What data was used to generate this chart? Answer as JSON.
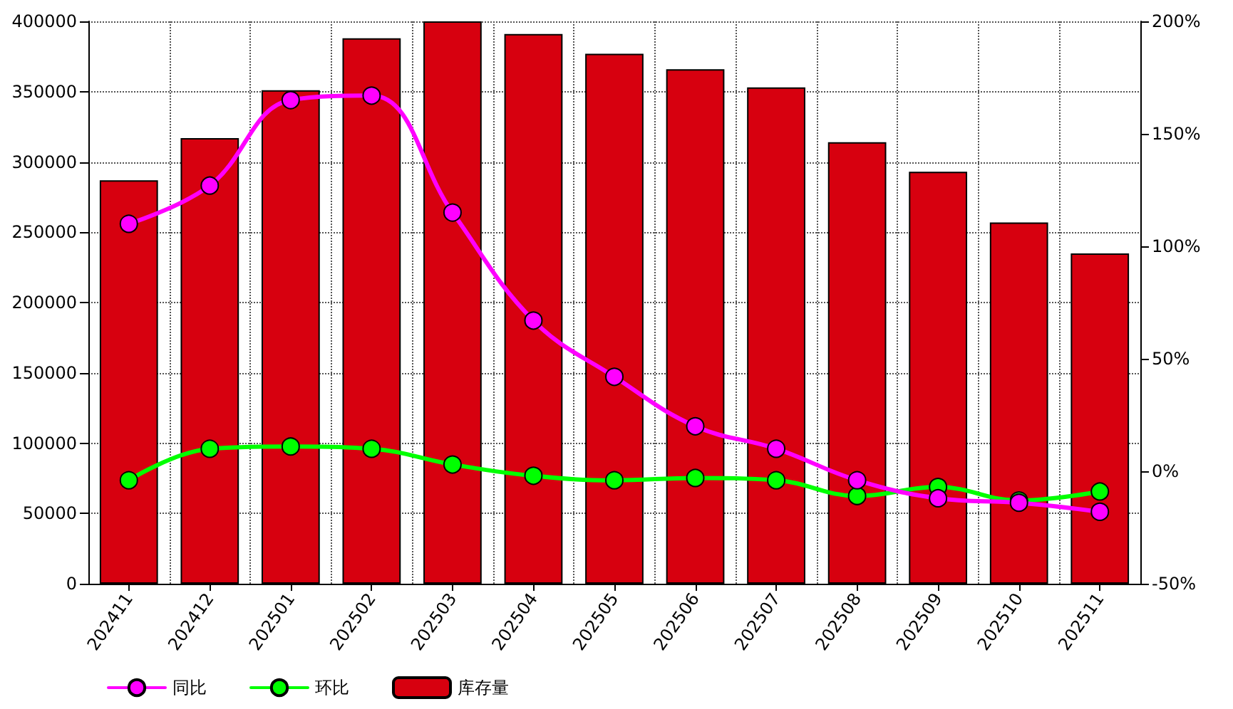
{
  "chart_data": {
    "type": "bar",
    "categories": [
      "202411",
      "202412",
      "202501",
      "202502",
      "202503",
      "202504",
      "202505",
      "202506",
      "202507",
      "202508",
      "202509",
      "202510",
      "202511"
    ],
    "series": [
      {
        "name": "同比",
        "type": "line",
        "axis": "y2",
        "color": "#ff00ff",
        "values": [
          110,
          127,
          165,
          167,
          115,
          67,
          42,
          20,
          10,
          -4,
          -12,
          -14,
          -18
        ]
      },
      {
        "name": "环比",
        "type": "line",
        "axis": "y2",
        "color": "#00ff00",
        "values": [
          -4,
          10,
          11,
          10,
          3,
          -2,
          -4,
          -3,
          -4,
          -11,
          -7,
          -13,
          -9
        ]
      },
      {
        "name": "库存量",
        "color": "#d7000f",
        "values": [
          287000,
          317000,
          351000,
          388000,
          400000,
          391000,
          377000,
          366000,
          353000,
          314000,
          293000,
          257000,
          235000
        ]
      }
    ],
    "ylim": [
      0,
      400000
    ],
    "yticks": [
      0,
      50000,
      100000,
      150000,
      200000,
      250000,
      300000,
      350000,
      400000
    ],
    "y2lim": [
      -50,
      200
    ],
    "y2ticks": [
      {
        "value": -50,
        "label": "-50%"
      },
      {
        "value": 0,
        "label": "0%"
      },
      {
        "value": 50,
        "label": "50%"
      },
      {
        "value": 100,
        "label": "100%"
      },
      {
        "value": 150,
        "label": "150%"
      },
      {
        "value": 200,
        "label": "200%"
      }
    ],
    "grid": true,
    "legend": "bottom left",
    "marker": "circle",
    "line_style": "solid"
  }
}
